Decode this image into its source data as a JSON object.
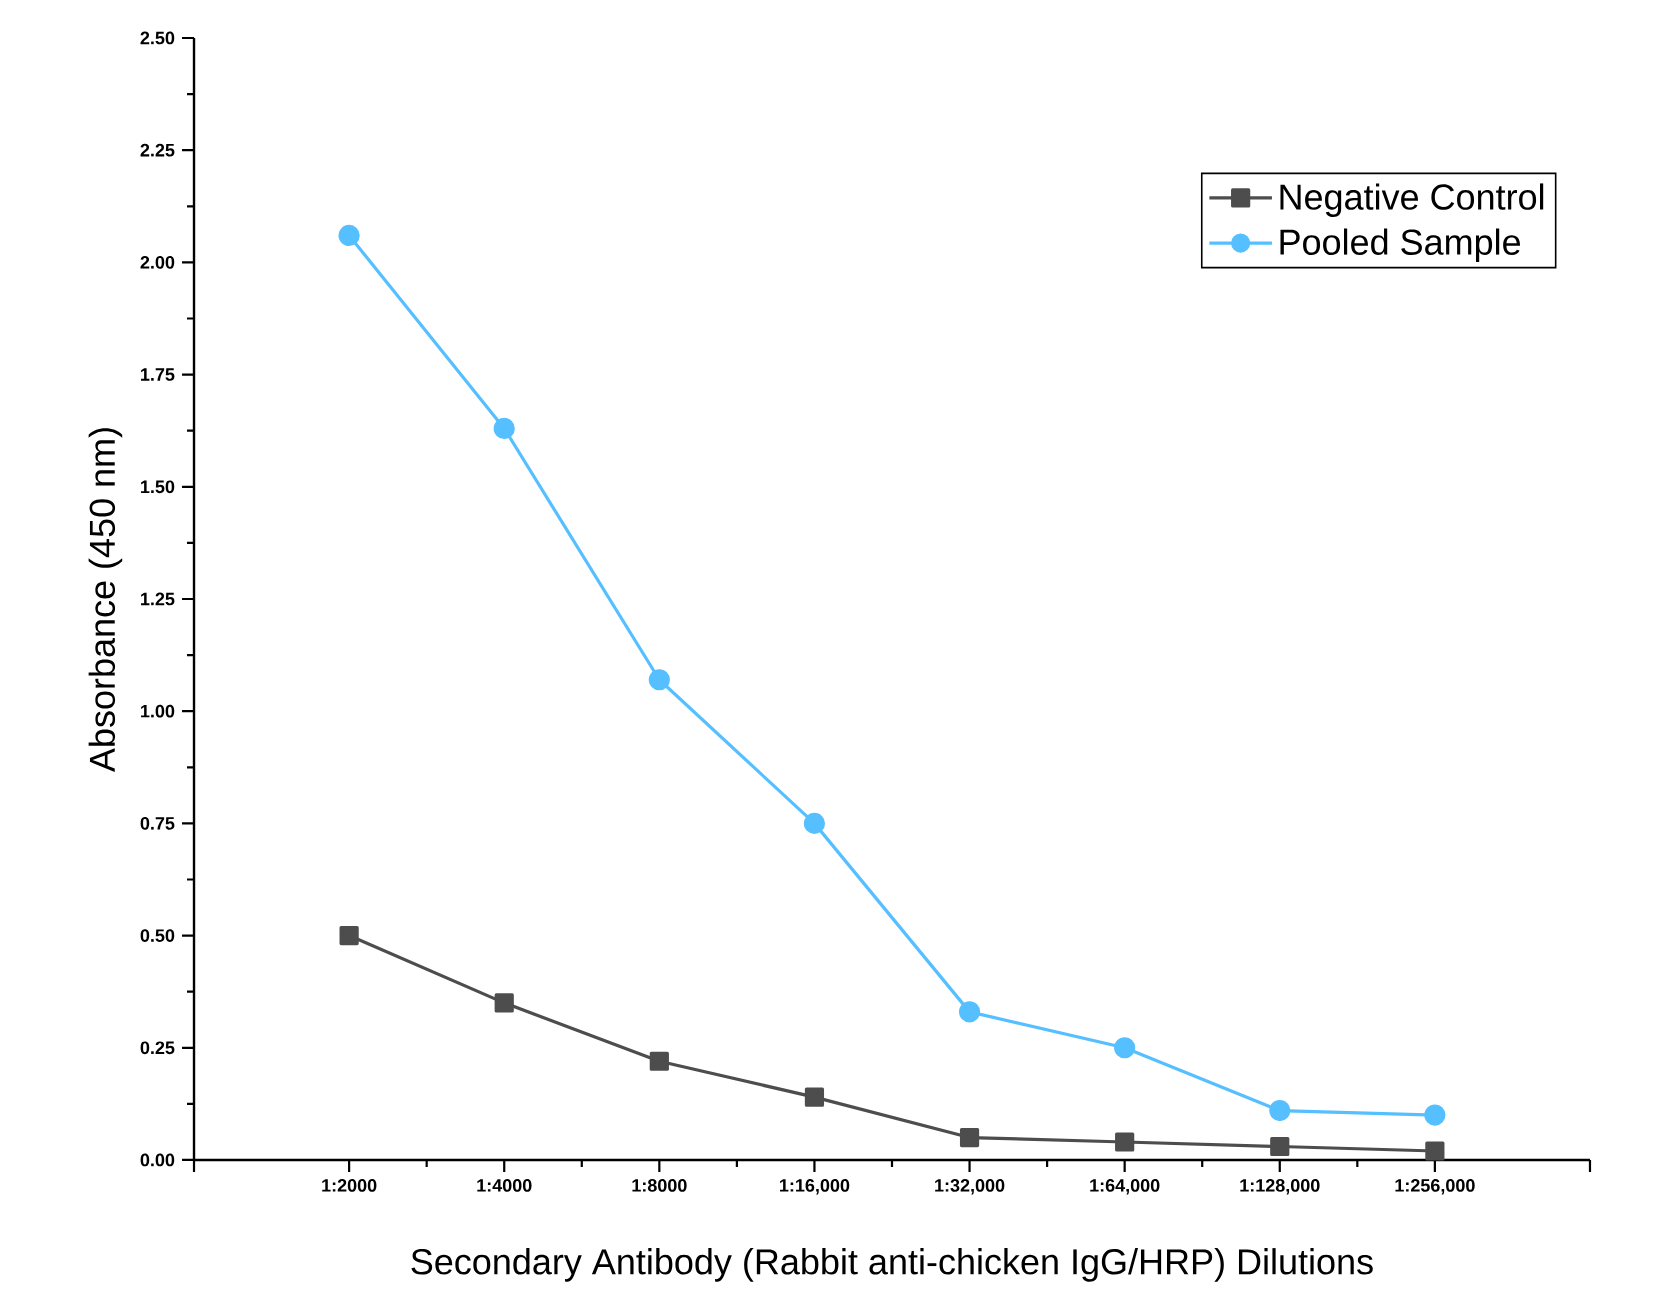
{
  "chart_data": {
    "type": "line",
    "xlabel": "Secondary Antibody (Rabbit anti-chicken IgG/HRP) Dilutions",
    "ylabel": "Absorbance (450 nm)",
    "categories": [
      "1:2000",
      "1:4000",
      "1:8000",
      "1:16,000",
      "1:32,000",
      "1:64,000",
      "1:128,000",
      "1:256,000"
    ],
    "series": [
      {
        "name": "Negative Control",
        "color": "#4d4d4d",
        "marker": "square",
        "values": [
          0.5,
          0.35,
          0.22,
          0.14,
          0.05,
          0.04,
          0.03,
          0.02
        ]
      },
      {
        "name": "Pooled Sample",
        "color": "#55bfff",
        "marker": "circle",
        "values": [
          2.06,
          1.63,
          1.07,
          0.75,
          0.33,
          0.25,
          0.11,
          0.1
        ]
      }
    ],
    "ylim": [
      0,
      2.5
    ],
    "yticks": [
      {
        "value": 0,
        "label": "0.00"
      },
      {
        "value": 0.25,
        "label": "0.25"
      },
      {
        "value": 0.5,
        "label": "0.50"
      },
      {
        "value": 0.75,
        "label": "0.75"
      },
      {
        "value": 1,
        "label": "1.00"
      },
      {
        "value": 1.25,
        "label": "1.25"
      },
      {
        "value": 1.5,
        "label": "1.50"
      },
      {
        "value": 1.75,
        "label": "1.75"
      },
      {
        "value": 2,
        "label": "2.00"
      },
      {
        "value": 2.25,
        "label": "2.25"
      },
      {
        "value": 2.5,
        "label": "2.50"
      }
    ],
    "grid": false,
    "legend": "top right",
    "line_style": "solid"
  }
}
